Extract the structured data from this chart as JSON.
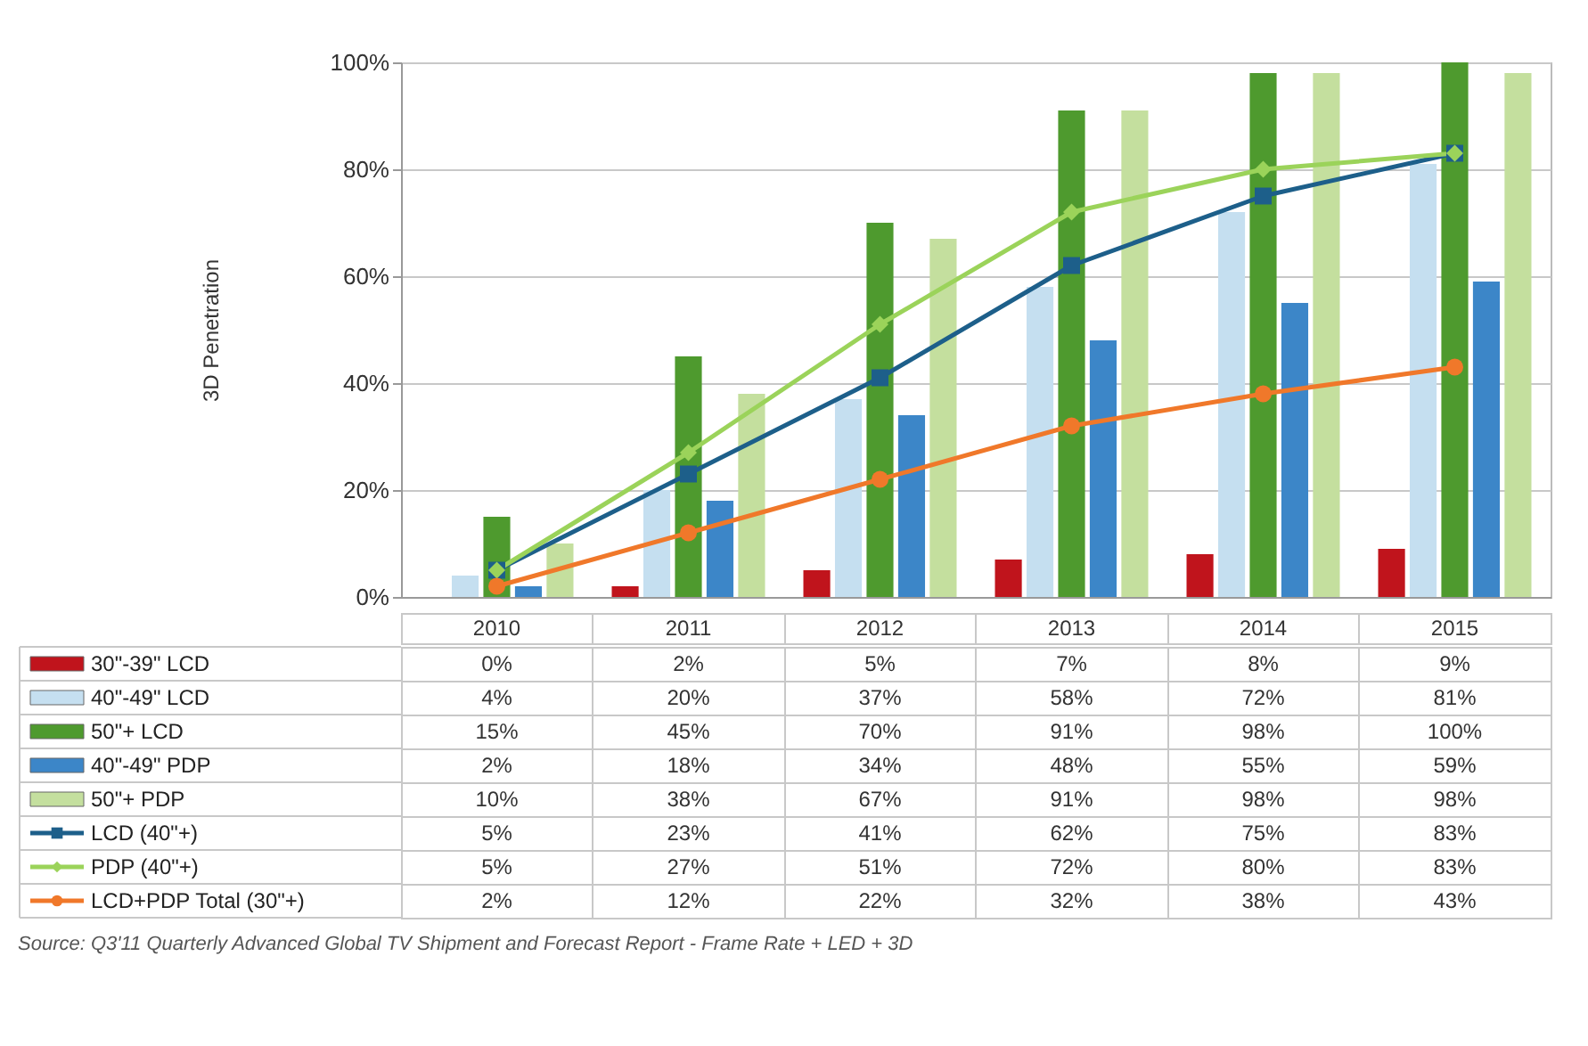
{
  "chart_data": {
    "type": "bar",
    "ylabel": "3D Penetration",
    "categories": [
      "2010",
      "2011",
      "2012",
      "2013",
      "2014",
      "2015"
    ],
    "ylim": [
      0,
      100
    ],
    "yticks": [
      {
        "value": 0,
        "label": "0%"
      },
      {
        "value": 20,
        "label": "20%"
      },
      {
        "value": 40,
        "label": "40%"
      },
      {
        "value": 60,
        "label": "60%"
      },
      {
        "value": 80,
        "label": "80%"
      },
      {
        "value": 100,
        "label": "100%"
      }
    ],
    "grid": "y",
    "legend": "bottom left",
    "series": [
      {
        "name": "30\"-39\" LCD",
        "color": "#c0141c",
        "values": [
          0,
          2,
          5,
          7,
          8,
          9
        ],
        "value_labels": [
          "0%",
          "2%",
          "5%",
          "7%",
          "8%",
          "9%"
        ]
      },
      {
        "name": "40\"-49\" LCD",
        "color": "#c5dff0",
        "values": [
          4,
          20,
          37,
          58,
          72,
          81
        ],
        "value_labels": [
          "4%",
          "20%",
          "37%",
          "58%",
          "72%",
          "81%"
        ]
      },
      {
        "name": "50\"+ LCD",
        "color": "#4e9a2e",
        "values": [
          15,
          45,
          70,
          91,
          98,
          100
        ],
        "value_labels": [
          "15%",
          "45%",
          "70%",
          "91%",
          "98%",
          "100%"
        ]
      },
      {
        "name": "40\"-49\" PDP",
        "color": "#3c86c8",
        "values": [
          2,
          18,
          34,
          48,
          55,
          59
        ],
        "value_labels": [
          "2%",
          "18%",
          "34%",
          "48%",
          "55%",
          "59%"
        ]
      },
      {
        "name": "50\"+ PDP",
        "color": "#c4df9e",
        "values": [
          10,
          38,
          67,
          91,
          98,
          98
        ],
        "value_labels": [
          "10%",
          "38%",
          "67%",
          "91%",
          "98%",
          "98%"
        ]
      },
      {
        "name": "LCD (40\"+)",
        "type": "line",
        "color": "#1d5f8a",
        "marker": "square",
        "values": [
          5,
          23,
          41,
          62,
          75,
          83
        ],
        "value_labels": [
          "5%",
          "23%",
          "41%",
          "62%",
          "75%",
          "83%"
        ]
      },
      {
        "name": "PDP (40\"+)",
        "type": "line",
        "color": "#9bd35a",
        "marker": "diamond",
        "values": [
          5,
          27,
          51,
          72,
          80,
          83
        ],
        "value_labels": [
          "5%",
          "27%",
          "51%",
          "72%",
          "80%",
          "83%"
        ]
      },
      {
        "name": "LCD+PDP Total (30\"+)",
        "type": "line",
        "color": "#f0782a",
        "marker": "circle",
        "values": [
          2,
          12,
          22,
          32,
          38,
          43
        ],
        "value_labels": [
          "2%",
          "12%",
          "22%",
          "32%",
          "38%",
          "43%"
        ]
      }
    ],
    "annotations": [
      "Source: Q3'11 Quarterly Advanced Global TV Shipment and Forecast Report - Frame Rate + LED + 3D"
    ]
  }
}
